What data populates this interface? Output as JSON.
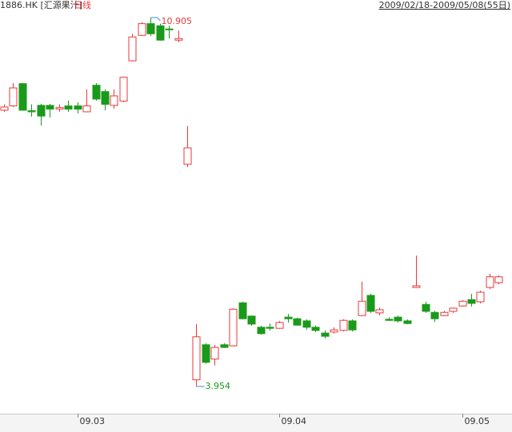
{
  "chart_data": {
    "type": "candlestick",
    "title": "1886.HK [汇源果汁]",
    "subtitle": "日线",
    "date_range": "2009/02/18-2009/05/08(55日)",
    "up_color": "#e8393a",
    "down_color": "#1a9a1a",
    "open": [
      9.16,
      9.24,
      9.66,
      9.15,
      9.25,
      9.25,
      9.18,
      9.24,
      9.24,
      9.13,
      9.63,
      9.51,
      9.25,
      9.33,
      10.09,
      10.57,
      10.79,
      10.75,
      10.69,
      10.48,
      8.14,
      4.08,
      4.74,
      4.47,
      4.74,
      4.72,
      5.53,
      5.28,
      5.07,
      5.07,
      5.05,
      5.26,
      5.23,
      5.19,
      5.07,
      4.96,
      4.98,
      5.01,
      5.19,
      5.29,
      5.67,
      5.34,
      5.22,
      5.26,
      5.19,
      5.82,
      5.5,
      5.35,
      5.29,
      5.37,
      5.47,
      5.59,
      5.55,
      5.82,
      5.91
    ],
    "high": [
      9.27,
      9.67,
      9.67,
      9.27,
      9.28,
      9.28,
      9.27,
      9.34,
      9.31,
      9.55,
      9.67,
      9.55,
      9.55,
      9.79,
      10.6,
      10.82,
      10.905,
      10.79,
      10.75,
      10.66,
      8.86,
      5.13,
      4.77,
      4.74,
      4.77,
      5.43,
      5.55,
      5.29,
      5.1,
      5.14,
      5.19,
      5.32,
      5.25,
      5.22,
      5.1,
      5.01,
      5.07,
      5.22,
      5.22,
      5.93,
      5.7,
      5.44,
      5.26,
      5.29,
      5.22,
      6.42,
      5.55,
      5.38,
      5.38,
      5.44,
      5.58,
      5.7,
      5.76,
      6.08,
      6.05
    ],
    "low": [
      9.13,
      9.22,
      9.15,
      9.04,
      8.87,
      9.02,
      9.13,
      9.13,
      9.1,
      9.12,
      9.34,
      9.16,
      9.19,
      9.31,
      10.08,
      10.56,
      10.56,
      10.47,
      10.51,
      10.44,
      8.09,
      3.954,
      4.38,
      4.35,
      4.68,
      4.71,
      5.22,
      5.1,
      4.93,
      5.01,
      5.04,
      5.16,
      5.1,
      5.02,
      4.98,
      4.86,
      4.95,
      4.99,
      4.99,
      5.28,
      5.34,
      5.29,
      5.19,
      5.16,
      5.13,
      5.81,
      5.34,
      5.17,
      5.28,
      5.34,
      5.46,
      5.46,
      5.52,
      5.79,
      5.88
    ],
    "close": [
      9.22,
      9.58,
      9.16,
      9.13,
      9.05,
      9.18,
      9.21,
      9.18,
      9.18,
      9.24,
      9.37,
      9.27,
      9.43,
      9.78,
      10.54,
      10.79,
      10.6,
      10.48,
      10.68,
      10.51,
      8.45,
      4.89,
      4.41,
      4.69,
      4.69,
      5.41,
      5.23,
      5.13,
      4.95,
      5.05,
      5.16,
      5.23,
      5.11,
      5.07,
      5.01,
      4.9,
      5.02,
      5.2,
      5.02,
      5.56,
      5.37,
      5.4,
      5.2,
      5.19,
      5.14,
      5.85,
      5.37,
      5.23,
      5.35,
      5.43,
      5.56,
      5.52,
      5.73,
      6.02,
      6.02
    ],
    "xticks": [
      {
        "value": 8,
        "label": "09.03"
      },
      {
        "value": 30,
        "label": "09.04"
      },
      {
        "value": 50,
        "label": "09.05"
      }
    ]
  }
}
